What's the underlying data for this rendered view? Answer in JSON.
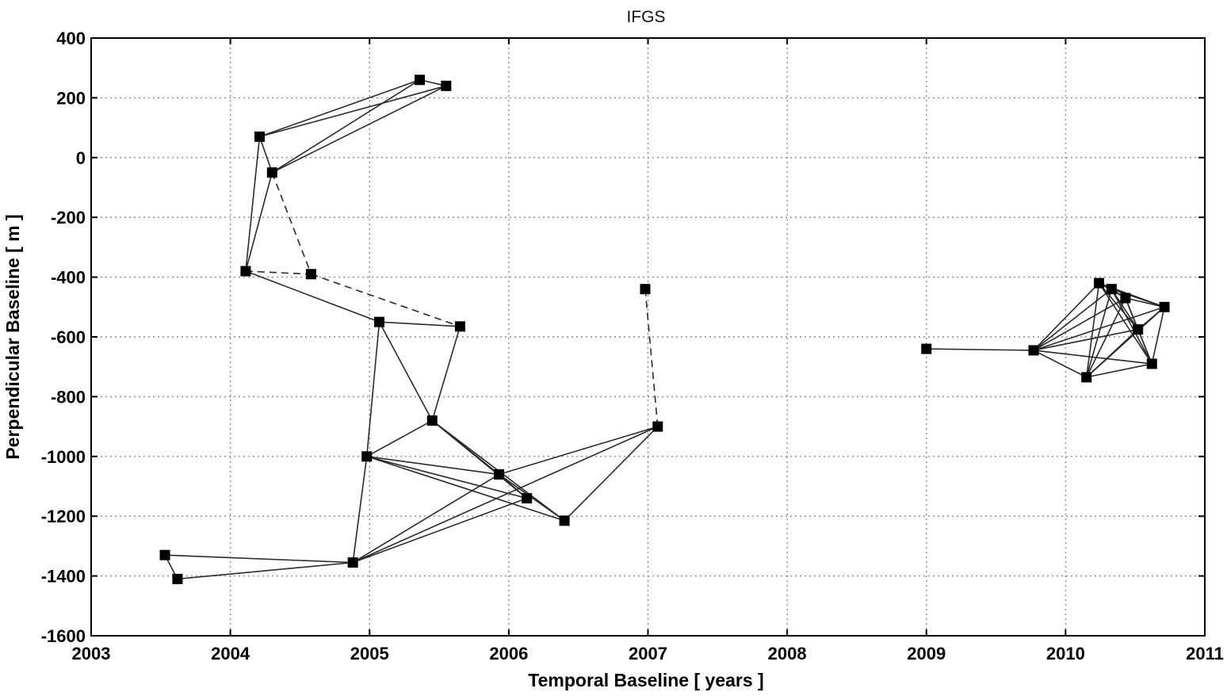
{
  "chart_data": {
    "type": "scatter",
    "title": "IFGS",
    "xlabel": "Temporal Baseline [ years ]",
    "ylabel": "Perpendicular Baseline [ m ]",
    "xlim": [
      2003,
      2011
    ],
    "ylim": [
      -1600,
      400
    ],
    "xticks": [
      2003,
      2004,
      2005,
      2006,
      2007,
      2008,
      2009,
      2010,
      2011
    ],
    "yticks": [
      400,
      200,
      0,
      -200,
      -400,
      -600,
      -800,
      -1000,
      -1200,
      -1400,
      -1600
    ],
    "grid": true,
    "acquisitions": [
      {
        "id": "A1",
        "x": 2003.53,
        "y": -1330
      },
      {
        "id": "A2",
        "x": 2003.62,
        "y": -1410
      },
      {
        "id": "A3",
        "x": 2004.11,
        "y": -380
      },
      {
        "id": "A4",
        "x": 2004.21,
        "y": 70
      },
      {
        "id": "A5",
        "x": 2004.3,
        "y": -50
      },
      {
        "id": "A6",
        "x": 2004.58,
        "y": -390
      },
      {
        "id": "A7",
        "x": 2004.88,
        "y": -1355
      },
      {
        "id": "A8",
        "x": 2004.98,
        "y": -1000
      },
      {
        "id": "A9",
        "x": 2005.07,
        "y": -550
      },
      {
        "id": "A10",
        "x": 2005.36,
        "y": 260
      },
      {
        "id": "A11",
        "x": 2005.45,
        "y": -880
      },
      {
        "id": "A12",
        "x": 2005.55,
        "y": 240
      },
      {
        "id": "A13",
        "x": 2005.65,
        "y": -565
      },
      {
        "id": "A14",
        "x": 2005.93,
        "y": -1060
      },
      {
        "id": "A15",
        "x": 2006.13,
        "y": -1140
      },
      {
        "id": "A16",
        "x": 2006.4,
        "y": -1215
      },
      {
        "id": "A17",
        "x": 2006.98,
        "y": -440
      },
      {
        "id": "A18",
        "x": 2007.07,
        "y": -900
      },
      {
        "id": "A19",
        "x": 2009.0,
        "y": -640
      },
      {
        "id": "A20",
        "x": 2009.77,
        "y": -645
      },
      {
        "id": "A21",
        "x": 2010.15,
        "y": -735
      },
      {
        "id": "A22",
        "x": 2010.24,
        "y": -420
      },
      {
        "id": "A23",
        "x": 2010.33,
        "y": -440
      },
      {
        "id": "A24",
        "x": 2010.43,
        "y": -470
      },
      {
        "id": "A25",
        "x": 2010.52,
        "y": -575
      },
      {
        "id": "A26",
        "x": 2010.62,
        "y": -690
      },
      {
        "id": "A27",
        "x": 2010.71,
        "y": -500
      }
    ],
    "interferograms": [
      {
        "from": "A1",
        "to": "A2",
        "style": "solid"
      },
      {
        "from": "A1",
        "to": "A7",
        "style": "solid"
      },
      {
        "from": "A2",
        "to": "A7",
        "style": "solid"
      },
      {
        "from": "A3",
        "to": "A4",
        "style": "solid"
      },
      {
        "from": "A3",
        "to": "A5",
        "style": "solid"
      },
      {
        "from": "A3",
        "to": "A6",
        "style": "dashed"
      },
      {
        "from": "A3",
        "to": "A9",
        "style": "solid"
      },
      {
        "from": "A4",
        "to": "A5",
        "style": "solid"
      },
      {
        "from": "A4",
        "to": "A10",
        "style": "solid"
      },
      {
        "from": "A4",
        "to": "A12",
        "style": "solid"
      },
      {
        "from": "A5",
        "to": "A10",
        "style": "solid"
      },
      {
        "from": "A5",
        "to": "A12",
        "style": "solid"
      },
      {
        "from": "A5",
        "to": "A6",
        "style": "dashed"
      },
      {
        "from": "A6",
        "to": "A13",
        "style": "dashed"
      },
      {
        "from": "A10",
        "to": "A12",
        "style": "solid"
      },
      {
        "from": "A9",
        "to": "A13",
        "style": "solid"
      },
      {
        "from": "A9",
        "to": "A8",
        "style": "solid"
      },
      {
        "from": "A9",
        "to": "A11",
        "style": "solid"
      },
      {
        "from": "A13",
        "to": "A11",
        "style": "solid"
      },
      {
        "from": "A8",
        "to": "A7",
        "style": "solid"
      },
      {
        "from": "A8",
        "to": "A11",
        "style": "solid"
      },
      {
        "from": "A8",
        "to": "A14",
        "style": "solid"
      },
      {
        "from": "A8",
        "to": "A15",
        "style": "solid"
      },
      {
        "from": "A8",
        "to": "A16",
        "style": "solid"
      },
      {
        "from": "A11",
        "to": "A14",
        "style": "solid"
      },
      {
        "from": "A11",
        "to": "A15",
        "style": "solid"
      },
      {
        "from": "A11",
        "to": "A16",
        "style": "solid"
      },
      {
        "from": "A14",
        "to": "A16",
        "style": "solid"
      },
      {
        "from": "A14",
        "to": "A15",
        "style": "solid"
      },
      {
        "from": "A7",
        "to": "A14",
        "style": "solid"
      },
      {
        "from": "A7",
        "to": "A15",
        "style": "solid"
      },
      {
        "from": "A7",
        "to": "A18",
        "style": "solid"
      },
      {
        "from": "A14",
        "to": "A18",
        "style": "solid"
      },
      {
        "from": "A16",
        "to": "A18",
        "style": "solid"
      },
      {
        "from": "A17",
        "to": "A18",
        "style": "dashed"
      },
      {
        "from": "A19",
        "to": "A20",
        "style": "solid"
      },
      {
        "from": "A20",
        "to": "A21",
        "style": "solid"
      },
      {
        "from": "A20",
        "to": "A22",
        "style": "solid"
      },
      {
        "from": "A20",
        "to": "A23",
        "style": "solid"
      },
      {
        "from": "A20",
        "to": "A24",
        "style": "solid"
      },
      {
        "from": "A20",
        "to": "A25",
        "style": "solid"
      },
      {
        "from": "A20",
        "to": "A26",
        "style": "solid"
      },
      {
        "from": "A20",
        "to": "A27",
        "style": "solid"
      },
      {
        "from": "A21",
        "to": "A22",
        "style": "solid"
      },
      {
        "from": "A21",
        "to": "A23",
        "style": "solid"
      },
      {
        "from": "A21",
        "to": "A24",
        "style": "solid"
      },
      {
        "from": "A21",
        "to": "A25",
        "style": "solid"
      },
      {
        "from": "A21",
        "to": "A26",
        "style": "solid"
      },
      {
        "from": "A21",
        "to": "A27",
        "style": "solid"
      },
      {
        "from": "A22",
        "to": "A23",
        "style": "solid"
      },
      {
        "from": "A22",
        "to": "A24",
        "style": "solid"
      },
      {
        "from": "A22",
        "to": "A25",
        "style": "solid"
      },
      {
        "from": "A22",
        "to": "A26",
        "style": "solid"
      },
      {
        "from": "A22",
        "to": "A27",
        "style": "solid"
      },
      {
        "from": "A23",
        "to": "A24",
        "style": "solid"
      },
      {
        "from": "A23",
        "to": "A25",
        "style": "solid"
      },
      {
        "from": "A23",
        "to": "A26",
        "style": "solid"
      },
      {
        "from": "A23",
        "to": "A27",
        "style": "solid"
      },
      {
        "from": "A24",
        "to": "A25",
        "style": "solid"
      },
      {
        "from": "A24",
        "to": "A26",
        "style": "solid"
      },
      {
        "from": "A24",
        "to": "A27",
        "style": "solid"
      },
      {
        "from": "A25",
        "to": "A26",
        "style": "solid"
      },
      {
        "from": "A25",
        "to": "A27",
        "style": "solid"
      },
      {
        "from": "A26",
        "to": "A27",
        "style": "solid"
      }
    ]
  }
}
